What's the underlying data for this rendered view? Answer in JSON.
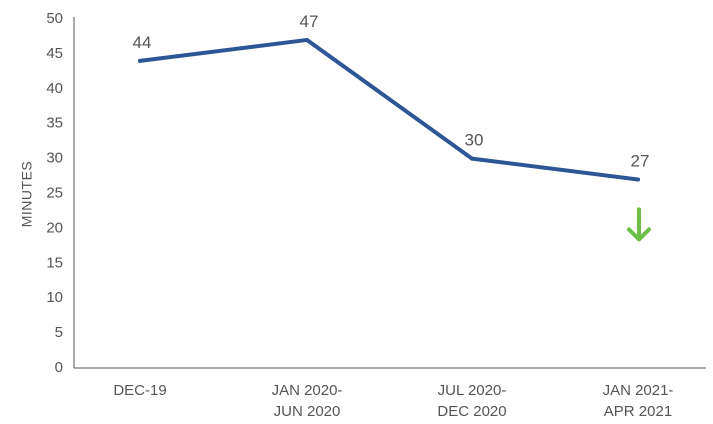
{
  "chart_data": {
    "type": "line",
    "title": "",
    "xlabel": "",
    "ylabel": "MINUTES",
    "categories": [
      [
        "DEC-19"
      ],
      [
        "JAN 2020-",
        "JUN 2020"
      ],
      [
        "JUL 2020-",
        "DEC 2020"
      ],
      [
        "JAN 2021-",
        "APR 2021"
      ]
    ],
    "series": [
      {
        "values": [
          44,
          47,
          30,
          27
        ],
        "color": "#2e5594"
      }
    ],
    "data_labels": [
      "44",
      "47",
      "30",
      "27"
    ],
    "ylim": [
      0,
      50
    ],
    "yticks": [
      0,
      5,
      10,
      15,
      20,
      25,
      30,
      35,
      40,
      45,
      50
    ],
    "grid": false,
    "legend": "none",
    "annotations": [
      {
        "type": "down-arrow-icon",
        "category_index": 3,
        "value": 20,
        "color": "#6cbf47"
      }
    ],
    "axis_color": "#555555",
    "text_color": "#555555"
  }
}
